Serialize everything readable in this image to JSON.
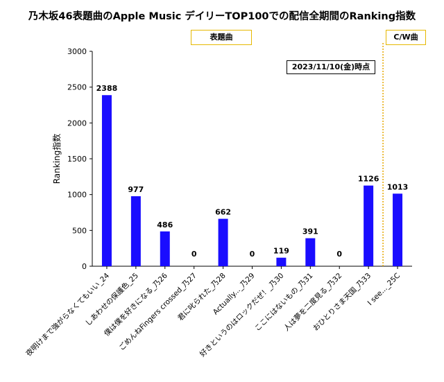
{
  "chart_data": {
    "type": "bar",
    "title": "乃木坂46表題曲のApple Music デイリーTOP100での配信全期間のRanking指数",
    "ylabel": "Ranking指数",
    "xlabel": "",
    "ylim": [
      0,
      3000
    ],
    "yticks": [
      0,
      500,
      1000,
      1500,
      2000,
      2500,
      3000
    ],
    "grid": false,
    "bar_color": "#1a0dff",
    "categories": [
      "夜明けまで強がらなくてもいい_24",
      "しあわせの保護色_25",
      "僕は僕を好きになる_乃26",
      "ごめんねFingers crossed_乃27",
      "君に叱られた_乃28",
      "Actually..._乃29",
      "好きというのはロックだぜ！_乃30",
      "ここにはないもの_乃31",
      "人は夢を二度見る_乃32",
      "おひとりさま天国_乃33",
      "I see..._25C"
    ],
    "values": [
      2388,
      977,
      486,
      0,
      662,
      0,
      119,
      391,
      0,
      1126,
      1013
    ],
    "annotations": {
      "section_title_label": "表題曲",
      "cw_label": "C/W曲",
      "date_label": "2023/11/10(金)時点"
    },
    "divider_color": "#e6a700"
  }
}
